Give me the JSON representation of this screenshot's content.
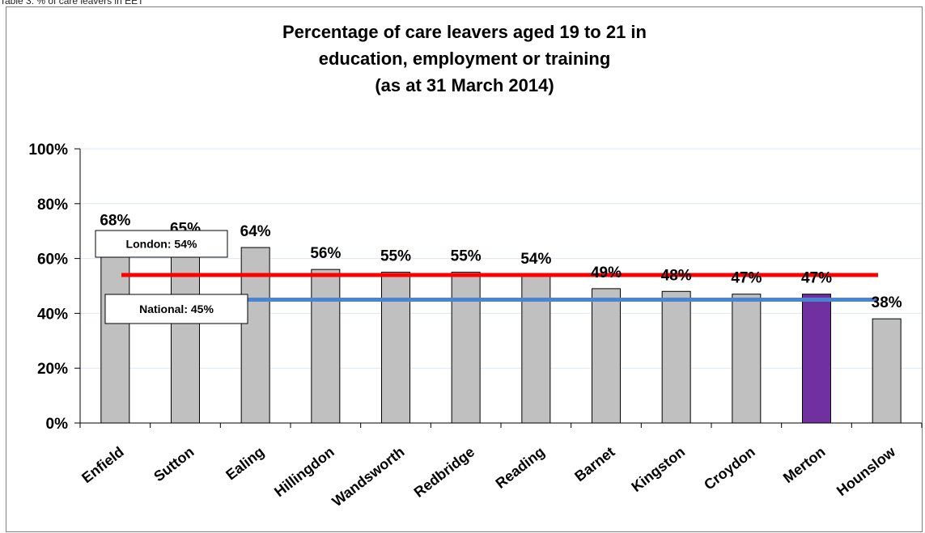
{
  "caption": "Table 3: % of care leavers in EET",
  "chart_data": {
    "type": "bar",
    "title": [
      "Percentage of care leavers aged 19 to 21 in",
      "education, employment or training",
      "(as at 31 March 2014)"
    ],
    "categories": [
      "Enfield",
      "Sutton",
      "Ealing",
      "Hillingdon",
      "Wandsworth",
      "Redbridge",
      "Reading",
      "Barnet",
      "Kingston",
      "Croydon",
      "Merton",
      "Hounslow"
    ],
    "values": [
      68,
      65,
      64,
      56,
      55,
      55,
      54,
      49,
      48,
      47,
      47,
      38
    ],
    "data_labels": [
      "68%",
      "65%",
      "64%",
      "56%",
      "55%",
      "55%",
      "54%",
      "49%",
      "48%",
      "47%",
      "47%",
      "38%"
    ],
    "highlight_category": "Merton",
    "ylim": [
      0,
      100
    ],
    "yticks": [
      "0%",
      "20%",
      "40%",
      "60%",
      "80%",
      "100%"
    ],
    "grid": true,
    "reference_lines": [
      {
        "label": "London: 54%",
        "value": 54,
        "color": "#ff0000"
      },
      {
        "label": "National: 45%",
        "value": 45,
        "color": "#4a86d0"
      }
    ],
    "colors": {
      "bar": "#c0c0c0",
      "highlight": "#7030a0",
      "grid": "#dde7f0"
    }
  }
}
